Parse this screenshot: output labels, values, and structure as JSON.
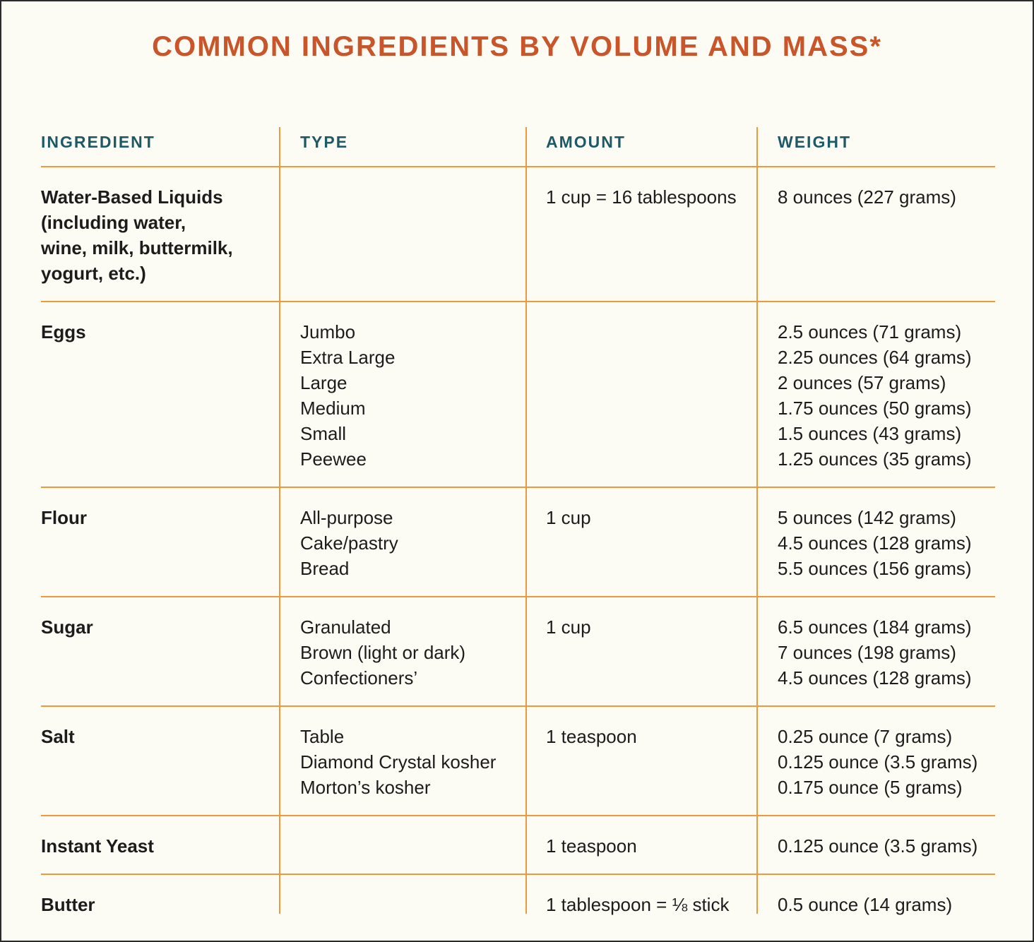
{
  "title": "COMMON INGREDIENTS BY VOLUME AND MASS*",
  "headers": {
    "ingredient": "INGREDIENT",
    "type": "TYPE",
    "amount": "AMOUNT",
    "weight": "WEIGHT"
  },
  "rows": [
    {
      "ingredient": [
        "Water-Based Liquids",
        "(including water,",
        "wine, milk, buttermilk,",
        "yogurt, etc.)"
      ],
      "types": [],
      "amount": "1 cup = 16 tablespoons",
      "weights": [
        "8 ounces (227 grams)"
      ]
    },
    {
      "ingredient": [
        "Eggs"
      ],
      "types": [
        "Jumbo",
        "Extra Large",
        "Large",
        "Medium",
        "Small",
        "Peewee"
      ],
      "amount": "",
      "weights": [
        "2.5 ounces (71 grams)",
        "2.25 ounces (64 grams)",
        "2 ounces (57 grams)",
        "1.75 ounces (50 grams)",
        "1.5 ounces (43 grams)",
        "1.25 ounces (35 grams)"
      ]
    },
    {
      "ingredient": [
        "Flour"
      ],
      "types": [
        "All-purpose",
        "Cake/pastry",
        "Bread"
      ],
      "amount": "1 cup",
      "weights": [
        "5 ounces (142 grams)",
        "4.5 ounces (128 grams)",
        "5.5 ounces (156 grams)"
      ]
    },
    {
      "ingredient": [
        "Sugar"
      ],
      "types": [
        "Granulated",
        "Brown (light or dark)",
        "Confectioners’"
      ],
      "amount": "1 cup",
      "weights": [
        "6.5 ounces (184 grams)",
        "7 ounces (198 grams)",
        "4.5 ounces (128 grams)"
      ]
    },
    {
      "ingredient": [
        "Salt"
      ],
      "types": [
        "Table",
        "Diamond Crystal kosher",
        "Morton’s kosher"
      ],
      "amount": "1 teaspoon",
      "weights": [
        "0.25 ounce (7 grams)",
        "0.125 ounce (3.5 grams)",
        "0.175 ounce (5 grams)"
      ]
    },
    {
      "ingredient": [
        "Instant Yeast"
      ],
      "types": [],
      "amount": "1 teaspoon",
      "weights": [
        "0.125 ounce (3.5 grams)"
      ]
    },
    {
      "ingredient": [
        "Butter"
      ],
      "types": [],
      "amount": "1 tablespoon = ⅛ stick",
      "weights": [
        "0.5 ounce (14 grams)"
      ]
    }
  ]
}
